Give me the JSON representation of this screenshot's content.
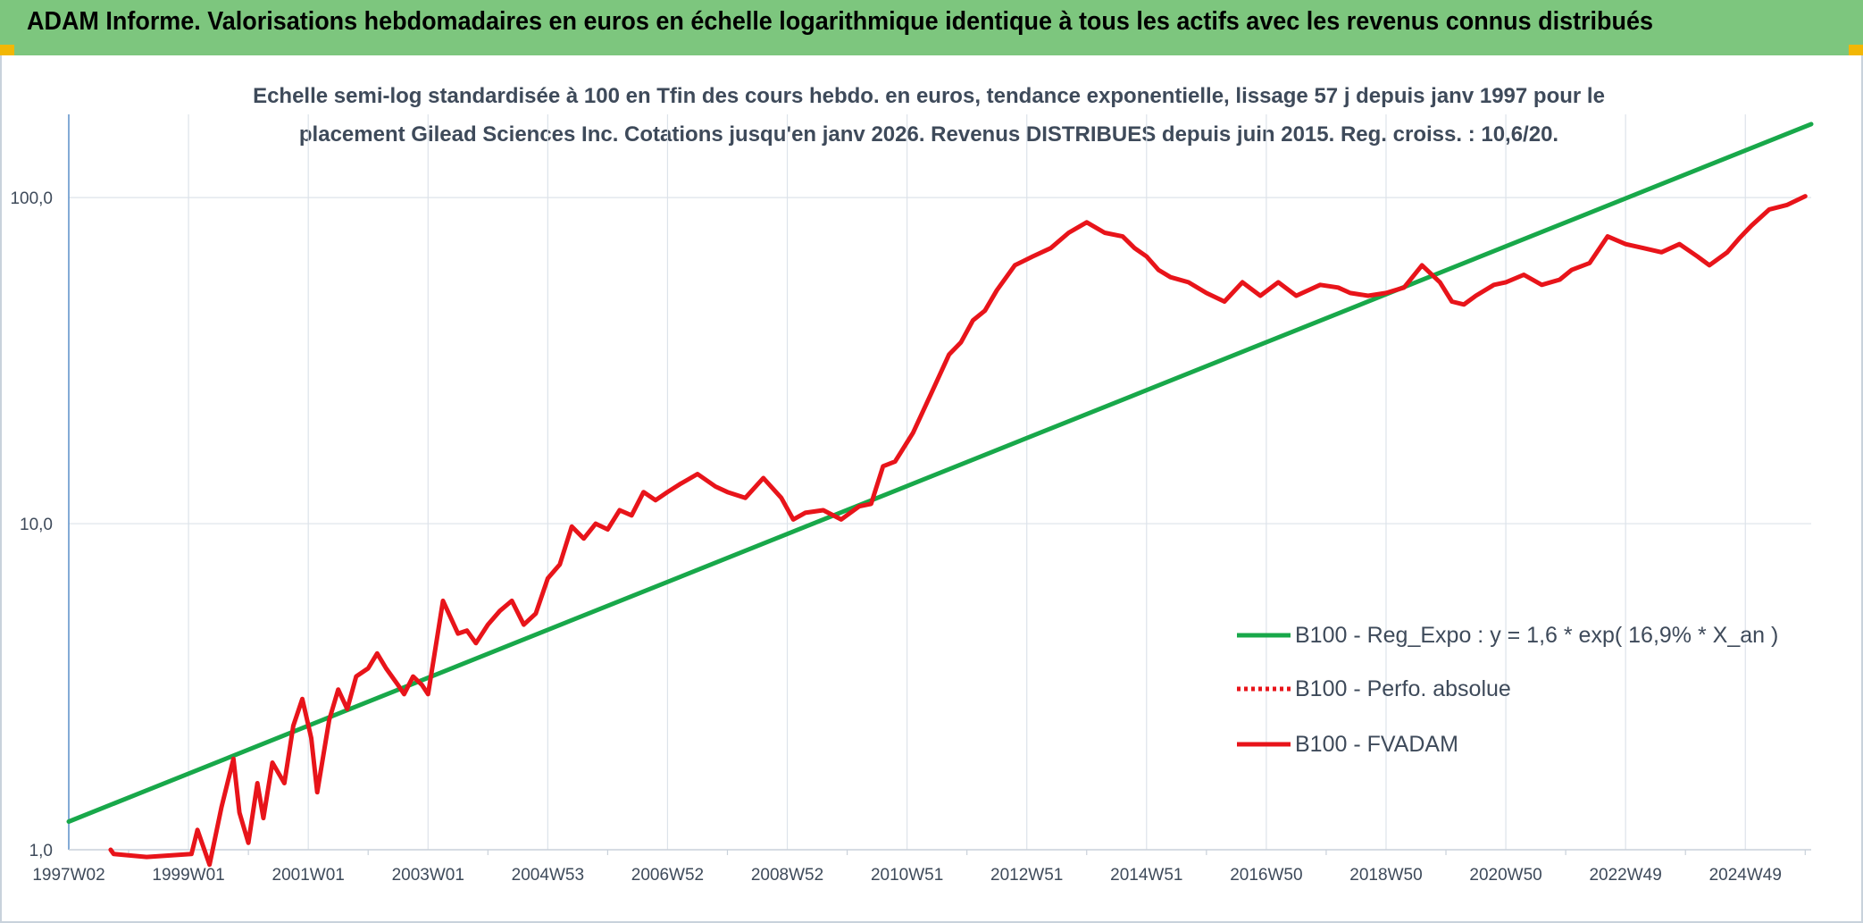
{
  "header": {
    "title": "ADAM Informe. Valorisations hebdomadaires en euros en échelle logarithmique identique à tous les actifs avec les revenus connus distribués"
  },
  "colors": {
    "header_bg": "#7dc67e",
    "trend": "#18a84a",
    "series": "#e8141a",
    "grid": "#dde3ea",
    "text": "#3e4a5a"
  },
  "chart_data": {
    "type": "line",
    "y_scale": "log",
    "title_lines": [
      "Echelle semi-log standardisée à 100 en Tfin des cours hebdo. en euros, tendance exponentielle, lissage 57 j depuis janv 1997 pour le",
      "placement Gilead Sciences Inc. Cotations jusqu'en janv 2026. Revenus DISTRIBUES depuis juin 2015. Reg. croiss. : 10,6/20."
    ],
    "xlim": [
      1997.0,
      2026.1
    ],
    "ylim": [
      1.0,
      180.0
    ],
    "y_ticks": [
      {
        "value": 1,
        "label": "1,0"
      },
      {
        "value": 10,
        "label": "10,0"
      },
      {
        "value": 100,
        "label": "100,0"
      }
    ],
    "x_ticks": [
      {
        "value": 1997.0,
        "label": "1997W02"
      },
      {
        "value": 1999.0,
        "label": "1999W01"
      },
      {
        "value": 2001.0,
        "label": "2001W01"
      },
      {
        "value": 2003.0,
        "label": "2003W01"
      },
      {
        "value": 2005.0,
        "label": "2004W53"
      },
      {
        "value": 2007.0,
        "label": "2006W52"
      },
      {
        "value": 2009.0,
        "label": "2008W52"
      },
      {
        "value": 2011.0,
        "label": "2010W51"
      },
      {
        "value": 2013.0,
        "label": "2012W51"
      },
      {
        "value": 2015.0,
        "label": "2014W51"
      },
      {
        "value": 2017.0,
        "label": "2016W50"
      },
      {
        "value": 2019.0,
        "label": "2018W50"
      },
      {
        "value": 2021.0,
        "label": "2020W50"
      },
      {
        "value": 2023.0,
        "label": "2022W49"
      },
      {
        "value": 2025.0,
        "label": "2024W49"
      }
    ],
    "legend": [
      {
        "label": "B100 - Reg_Expo : y = 1,6 * exp( 16,9% *  X_an )",
        "style": "solid-green"
      },
      {
        "label": "B100 - Perfo. absolue",
        "style": "dotted-red"
      },
      {
        "label": "B100 - FVADAM",
        "style": "solid-red"
      }
    ],
    "series": [
      {
        "name": "B100 - Reg_Expo : y = 1,6 * exp( 16,9% *  X_an )",
        "x": [
          1997.0,
          2026.1
        ],
        "values": [
          1.22,
          168
        ]
      },
      {
        "name": "B100 - Perfo. absolue",
        "x": [],
        "values": []
      },
      {
        "name": "B100 - FVADAM",
        "x": [
          1997.7,
          1997.75,
          1998.3,
          1999.05,
          1999.15,
          1999.35,
          1999.55,
          1999.75,
          1999.85,
          2000.0,
          2000.15,
          2000.25,
          2000.4,
          2000.6,
          2000.75,
          2000.9,
          2001.05,
          2001.15,
          2001.35,
          2001.5,
          2001.65,
          2001.8,
          2002.0,
          2002.15,
          2002.3,
          2002.5,
          2002.6,
          2002.75,
          2002.9,
          2003.0,
          2003.1,
          2003.25,
          2003.5,
          2003.65,
          2003.8,
          2004.0,
          2004.2,
          2004.4,
          2004.6,
          2004.8,
          2005.0,
          2005.2,
          2005.4,
          2005.6,
          2005.8,
          2006.0,
          2006.2,
          2006.4,
          2006.6,
          2006.8,
          2007.0,
          2007.2,
          2007.5,
          2007.8,
          2008.0,
          2008.3,
          2008.6,
          2008.9,
          2009.1,
          2009.3,
          2009.6,
          2009.9,
          2010.2,
          2010.4,
          2010.6,
          2010.8,
          2011.1,
          2011.4,
          2011.7,
          2011.9,
          2012.1,
          2012.3,
          2012.5,
          2012.8,
          2013.1,
          2013.4,
          2013.7,
          2014.0,
          2014.3,
          2014.6,
          2014.8,
          2015.0,
          2015.2,
          2015.4,
          2015.7,
          2016.0,
          2016.3,
          2016.6,
          2016.9,
          2017.2,
          2017.5,
          2017.9,
          2018.2,
          2018.4,
          2018.7,
          2019.0,
          2019.3,
          2019.6,
          2019.9,
          2020.1,
          2020.3,
          2020.5,
          2020.8,
          2021.0,
          2021.3,
          2021.6,
          2021.9,
          2022.1,
          2022.4,
          2022.7,
          2023.0,
          2023.3,
          2023.6,
          2023.9,
          2024.2,
          2024.4,
          2024.7,
          2024.9,
          2025.1,
          2025.4,
          2025.7,
          2026.0
        ],
        "values": [
          1.0,
          0.97,
          0.95,
          0.97,
          1.15,
          0.9,
          1.35,
          1.9,
          1.3,
          1.05,
          1.6,
          1.25,
          1.85,
          1.6,
          2.4,
          2.9,
          2.2,
          1.5,
          2.5,
          3.1,
          2.7,
          3.4,
          3.6,
          4.0,
          3.6,
          3.2,
          3.0,
          3.4,
          3.2,
          3.0,
          3.9,
          5.8,
          4.6,
          4.7,
          4.3,
          4.9,
          5.4,
          5.8,
          4.9,
          5.3,
          6.8,
          7.5,
          9.8,
          9.0,
          10.0,
          9.6,
          11.0,
          10.6,
          12.5,
          11.8,
          12.5,
          13.2,
          14.2,
          13.0,
          12.5,
          12.0,
          13.8,
          12.0,
          10.3,
          10.8,
          11.0,
          10.3,
          11.3,
          11.5,
          15.0,
          15.5,
          19.0,
          25.0,
          33.0,
          36.0,
          42.0,
          45.0,
          52.0,
          62.0,
          66.0,
          70.0,
          78.0,
          84.0,
          78.0,
          76.0,
          70.0,
          66.0,
          60.0,
          57.0,
          55.0,
          51.0,
          48.0,
          55.0,
          50.0,
          55.0,
          50.0,
          54.0,
          53.0,
          51.0,
          50.0,
          51.0,
          53.0,
          62.0,
          55.0,
          48.0,
          47.0,
          50.0,
          54.0,
          55.0,
          58.0,
          54.0,
          56.0,
          60.0,
          63.0,
          76.0,
          72.0,
          70.0,
          68.0,
          72.0,
          66.0,
          62.0,
          68.0,
          75.0,
          82.0,
          92.0,
          95.0,
          101.0
        ]
      }
    ]
  }
}
